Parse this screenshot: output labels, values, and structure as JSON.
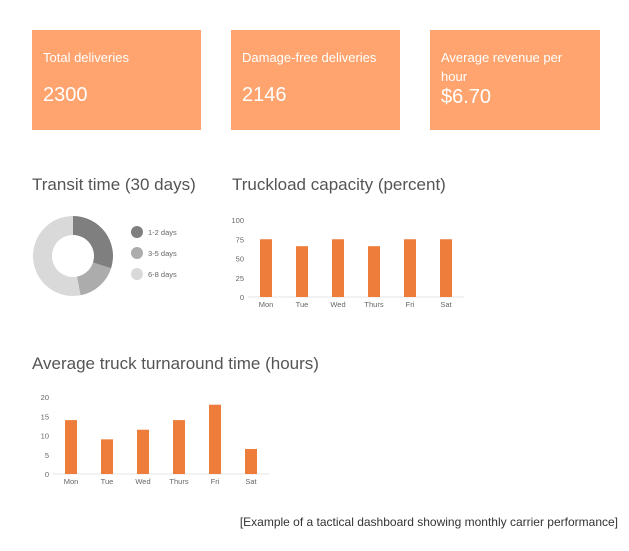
{
  "kpis": [
    {
      "label": "Total deliveries",
      "value": "2300"
    },
    {
      "label": "Damage-free deliveries",
      "value": "2146"
    },
    {
      "label": "Average revenue per hour",
      "value": "$6.70"
    }
  ],
  "colors": {
    "kpi_bg": "#FFA46E",
    "bar": "#EE7D3B",
    "donut": [
      "#7F7F7F",
      "#ACACAC",
      "#D9D9D9"
    ]
  },
  "chart_data": [
    {
      "type": "pie",
      "title": "Transit time (30 days)",
      "categories": [
        "1-2 days",
        "3-5 days",
        "6-8 days"
      ],
      "values": [
        30,
        17,
        53
      ],
      "legend": "right"
    },
    {
      "type": "bar",
      "title": "Truckload capacity (percent)",
      "categories": [
        "Mon",
        "Tue",
        "Wed",
        "Thurs",
        "Fri",
        "Sat"
      ],
      "values": [
        75,
        66,
        75,
        66,
        75,
        75
      ],
      "ylim": [
        0,
        100
      ],
      "yticks": [
        0,
        25,
        50,
        75,
        100
      ],
      "grid": false
    },
    {
      "type": "bar",
      "title": "Average truck turnaround time (hours)",
      "categories": [
        "Mon",
        "Tue",
        "Wed",
        "Thurs",
        "Fri",
        "Sat"
      ],
      "values": [
        14,
        9,
        11.5,
        14,
        18,
        6.5
      ],
      "ylim": [
        0,
        20
      ],
      "yticks": [
        0,
        5,
        10,
        15,
        20
      ],
      "grid": false
    }
  ],
  "caption": "[Example of a tactical dashboard showing monthly carrier performance]"
}
